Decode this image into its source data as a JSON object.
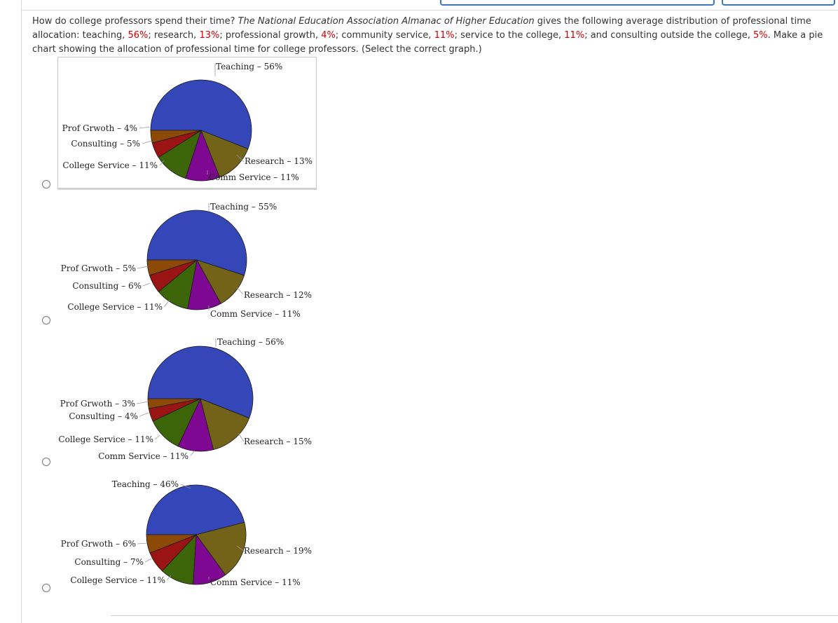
{
  "question": {
    "before": "How do college professors spend their time? ",
    "source": "The National Education Association Almanac of Higher Education",
    "after_source": " gives the following average distribution of professional time allocation: teaching, ",
    "v1": "56%",
    "t1": "; research, ",
    "v2": "13%",
    "t2": "; professional growth, ",
    "v3": "4%",
    "t3": "; community service, ",
    "v4": "11%",
    "t4": "; service to the college, ",
    "v5": "11%",
    "t5": "; and consulting outside the college, ",
    "v6": "5%",
    "t6": ". Make a pie chart showing the allocation of professional time for college professors. (Select the correct graph.)"
  },
  "colors": {
    "teaching": "#3546b8",
    "research": "#736319",
    "comm_service": "#7e0891",
    "college_service": "#3c650a",
    "consulting": "#9b1414",
    "prof_growth": "#8d4a06",
    "red_text": "#cc0000"
  },
  "chart_data": [
    {
      "type": "pie",
      "option": "A",
      "selected": false,
      "slices": [
        {
          "label": "Teaching – 56%",
          "value": 56,
          "color": "#3546b8"
        },
        {
          "label": "Research – 13%",
          "value": 13,
          "color": "#736319"
        },
        {
          "label": "Comm Service – 11%",
          "value": 11,
          "color": "#7e0891"
        },
        {
          "label": "College Service – 11%",
          "value": 11,
          "color": "#3c650a"
        },
        {
          "label": "Consulting – 5%",
          "value": 5,
          "color": "#9b1414"
        },
        {
          "label": "Prof Grwoth – 4%",
          "value": 4,
          "color": "#8d4a06"
        }
      ]
    },
    {
      "type": "pie",
      "option": "B",
      "selected": false,
      "slices": [
        {
          "label": "Teaching – 55%",
          "value": 55,
          "color": "#3546b8"
        },
        {
          "label": "Research – 12%",
          "value": 12,
          "color": "#736319"
        },
        {
          "label": "Comm Service – 11%",
          "value": 11,
          "color": "#7e0891"
        },
        {
          "label": "College Service – 11%",
          "value": 11,
          "color": "#3c650a"
        },
        {
          "label": "Consulting – 6%",
          "value": 6,
          "color": "#9b1414"
        },
        {
          "label": "Prof Grwoth – 5%",
          "value": 5,
          "color": "#8d4a06"
        }
      ]
    },
    {
      "type": "pie",
      "option": "C",
      "selected": false,
      "slices": [
        {
          "label": "Teaching – 56%",
          "value": 56,
          "color": "#3546b8"
        },
        {
          "label": "Research – 15%",
          "value": 15,
          "color": "#736319"
        },
        {
          "label": "Comm Service – 11%",
          "value": 11,
          "color": "#7e0891"
        },
        {
          "label": "College Service – 11%",
          "value": 11,
          "color": "#3c650a"
        },
        {
          "label": "Consulting – 4%",
          "value": 4,
          "color": "#9b1414"
        },
        {
          "label": "Prof Grwoth – 3%",
          "value": 3,
          "color": "#8d4a06"
        }
      ]
    },
    {
      "type": "pie",
      "option": "D",
      "selected": false,
      "slices": [
        {
          "label": "Teaching – 46%",
          "value": 46,
          "color": "#3546b8"
        },
        {
          "label": "Research – 19%",
          "value": 19,
          "color": "#736319"
        },
        {
          "label": "Comm Service – 11%",
          "value": 11,
          "color": "#7e0891"
        },
        {
          "label": "College Service – 11%",
          "value": 11,
          "color": "#3c650a"
        },
        {
          "label": "Consulting – 7%",
          "value": 7,
          "color": "#9b1414"
        },
        {
          "label": "Prof Grwoth – 6%",
          "value": 6,
          "color": "#8d4a06"
        }
      ]
    }
  ]
}
